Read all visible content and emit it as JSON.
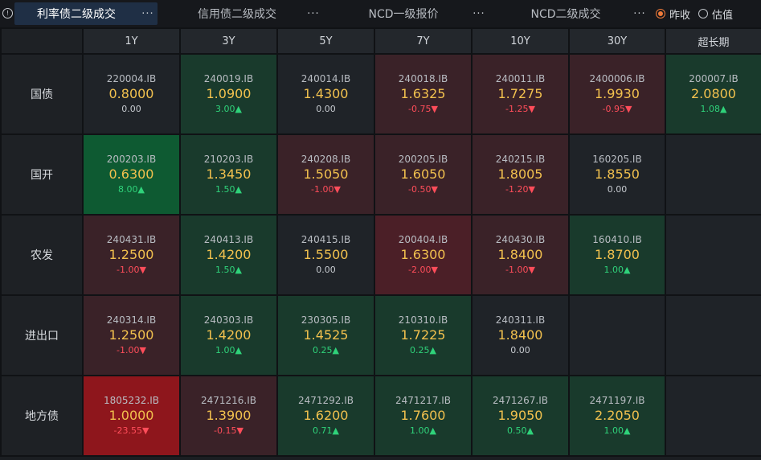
{
  "tabs": [
    {
      "label": "利率债二级成交",
      "active": true
    },
    {
      "label": "信用债二级成交",
      "active": false
    },
    {
      "label": "NCD一级报价",
      "active": false
    },
    {
      "label": "NCD二级成交",
      "active": false
    }
  ],
  "more_label": "···",
  "info_symbol": "!",
  "radios": [
    {
      "label": "昨收",
      "checked": true
    },
    {
      "label": "估值",
      "checked": false
    }
  ],
  "columns": [
    "1Y",
    "3Y",
    "5Y",
    "7Y",
    "10Y",
    "30Y",
    "超长期"
  ],
  "rows": [
    {
      "name": "国债",
      "cells": [
        {
          "code": "220004.IB",
          "rate": "0.8000",
          "change": "0.00",
          "dir": "flat",
          "bg": "n"
        },
        {
          "code": "240019.IB",
          "rate": "1.0900",
          "change": "3.00▲",
          "dir": "up",
          "bg": "g1"
        },
        {
          "code": "240014.IB",
          "rate": "1.4300",
          "change": "0.00",
          "dir": "flat",
          "bg": "n"
        },
        {
          "code": "240018.IB",
          "rate": "1.6325",
          "change": "-0.75▼",
          "dir": "down",
          "bg": "r1"
        },
        {
          "code": "240011.IB",
          "rate": "1.7275",
          "change": "-1.25▼",
          "dir": "down",
          "bg": "r1"
        },
        {
          "code": "2400006.IB",
          "rate": "1.9930",
          "change": "-0.95▼",
          "dir": "down",
          "bg": "r1"
        },
        {
          "code": "200007.IB",
          "rate": "2.0800",
          "change": "1.08▲",
          "dir": "up",
          "bg": "g1"
        }
      ]
    },
    {
      "name": "国开",
      "cells": [
        {
          "code": "200203.IB",
          "rate": "0.6300",
          "change": "8.00▲",
          "dir": "up",
          "bg": "g2"
        },
        {
          "code": "210203.IB",
          "rate": "1.3450",
          "change": "1.50▲",
          "dir": "up",
          "bg": "g1"
        },
        {
          "code": "240208.IB",
          "rate": "1.5050",
          "change": "-1.00▼",
          "dir": "down",
          "bg": "r1"
        },
        {
          "code": "200205.IB",
          "rate": "1.6050",
          "change": "-0.50▼",
          "dir": "down",
          "bg": "r1"
        },
        {
          "code": "240215.IB",
          "rate": "1.8005",
          "change": "-1.20▼",
          "dir": "down",
          "bg": "r1"
        },
        {
          "code": "160205.IB",
          "rate": "1.8550",
          "change": "0.00",
          "dir": "flat",
          "bg": "n"
        },
        null
      ]
    },
    {
      "name": "农发",
      "cells": [
        {
          "code": "240431.IB",
          "rate": "1.2500",
          "change": "-1.00▼",
          "dir": "down",
          "bg": "r1"
        },
        {
          "code": "240413.IB",
          "rate": "1.4200",
          "change": "1.50▲",
          "dir": "up",
          "bg": "g1"
        },
        {
          "code": "240415.IB",
          "rate": "1.5500",
          "change": "0.00",
          "dir": "flat",
          "bg": "n"
        },
        {
          "code": "200404.IB",
          "rate": "1.6300",
          "change": "-2.00▼",
          "dir": "down",
          "bg": "r2"
        },
        {
          "code": "240430.IB",
          "rate": "1.8400",
          "change": "-1.00▼",
          "dir": "down",
          "bg": "r1"
        },
        {
          "code": "160410.IB",
          "rate": "1.8700",
          "change": "1.00▲",
          "dir": "up",
          "bg": "g1"
        },
        null
      ]
    },
    {
      "name": "进出口",
      "cells": [
        {
          "code": "240314.IB",
          "rate": "1.2500",
          "change": "-1.00▼",
          "dir": "down",
          "bg": "r1"
        },
        {
          "code": "240303.IB",
          "rate": "1.4200",
          "change": "1.00▲",
          "dir": "up",
          "bg": "g1"
        },
        {
          "code": "230305.IB",
          "rate": "1.4525",
          "change": "0.25▲",
          "dir": "up",
          "bg": "g1"
        },
        {
          "code": "210310.IB",
          "rate": "1.7225",
          "change": "0.25▲",
          "dir": "up",
          "bg": "g1"
        },
        {
          "code": "240311.IB",
          "rate": "1.8400",
          "change": "0.00",
          "dir": "flat",
          "bg": "n"
        },
        null,
        null
      ]
    },
    {
      "name": "地方债",
      "cells": [
        {
          "code": "1805232.IB",
          "rate": "1.0000",
          "change": "-23.55▼",
          "dir": "down",
          "bg": "r3"
        },
        {
          "code": "2471216.IB",
          "rate": "1.3900",
          "change": "-0.15▼",
          "dir": "down",
          "bg": "r1"
        },
        {
          "code": "2471292.IB",
          "rate": "1.6200",
          "change": "0.71▲",
          "dir": "up",
          "bg": "g1"
        },
        {
          "code": "2471217.IB",
          "rate": "1.7600",
          "change": "1.00▲",
          "dir": "up",
          "bg": "g1"
        },
        {
          "code": "2471267.IB",
          "rate": "1.9050",
          "change": "0.50▲",
          "dir": "up",
          "bg": "g1"
        },
        {
          "code": "2471197.IB",
          "rate": "2.2050",
          "change": "1.00▲",
          "dir": "up",
          "bg": "g1"
        },
        null
      ]
    }
  ],
  "colors": {
    "rate_text": "#f2c14e",
    "up": "#2fd27a",
    "down": "#ff4d5a",
    "active_tab": "#1f2f45",
    "radio_checked": "#f07b3a"
  }
}
